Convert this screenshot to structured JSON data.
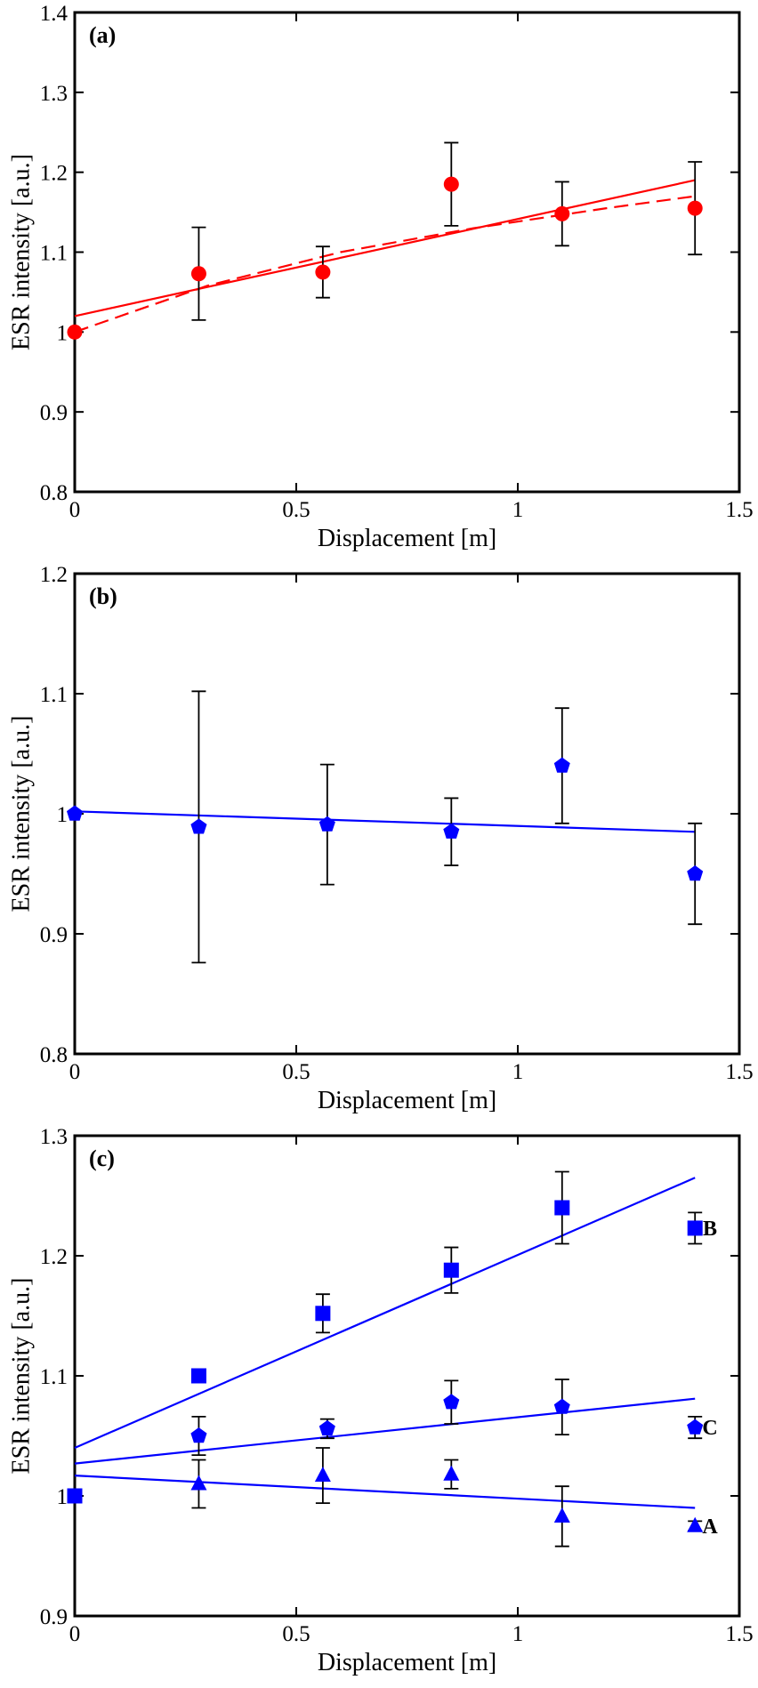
{
  "chart_data": [
    {
      "type": "scatter",
      "panel_label": "(a)",
      "xlabel": "Displacement [m]",
      "ylabel": "ESR intensity [a.u.]",
      "xlim": [
        0,
        1.5
      ],
      "ylim": [
        0.8,
        1.4
      ],
      "x_ticks": [
        "0",
        "0.5",
        "1",
        "1.5"
      ],
      "y_ticks": [
        "0.8",
        "0.9",
        "1",
        "1.1",
        "1.2",
        "1.3",
        "1.4"
      ],
      "color": "#ff0000",
      "series": [
        {
          "marker": "circle",
          "x": [
            0,
            0.28,
            0.56,
            0.85,
            1.1,
            1.4
          ],
          "y": [
            1.0,
            1.073,
            1.075,
            1.185,
            1.148,
            1.155
          ],
          "err": [
            0,
            0.058,
            0.032,
            0.052,
            0.04,
            0.058
          ]
        }
      ],
      "fits": [
        {
          "style": "solid",
          "x": [
            0,
            1.4
          ],
          "y": [
            1.02,
            1.19
          ]
        },
        {
          "style": "dashed",
          "x": [
            0,
            0.3,
            0.6,
            0.9,
            1.2,
            1.4
          ],
          "y": [
            1.0,
            1.058,
            1.1,
            1.13,
            1.155,
            1.17
          ]
        }
      ]
    },
    {
      "type": "scatter",
      "panel_label": "(b)",
      "xlabel": "Displacement [m]",
      "ylabel": "ESR intensity [a.u.]",
      "xlim": [
        0,
        1.5
      ],
      "ylim": [
        0.8,
        1.2
      ],
      "x_ticks": [
        "0",
        "0.5",
        "1",
        "1.5"
      ],
      "y_ticks": [
        "0.8",
        "0.9",
        "1",
        "1.1",
        "1.2"
      ],
      "color": "#0000ff",
      "series": [
        {
          "marker": "pentagon",
          "x": [
            0,
            0.28,
            0.57,
            0.85,
            1.1,
            1.4
          ],
          "y": [
            1.0,
            0.989,
            0.991,
            0.985,
            1.04,
            0.95
          ],
          "err": [
            0,
            0.113,
            0.05,
            0.028,
            0.048,
            0.042
          ]
        }
      ],
      "fits": [
        {
          "style": "solid",
          "x": [
            0,
            1.4
          ],
          "y": [
            1.002,
            0.985
          ]
        }
      ]
    },
    {
      "type": "scatter",
      "panel_label": "(c)",
      "xlabel": "Displacement [m]",
      "ylabel": "ESR intensity [a.u.]",
      "xlim": [
        0,
        1.5
      ],
      "ylim": [
        0.9,
        1.3
      ],
      "x_ticks": [
        "0",
        "0.5",
        "1",
        "1.5"
      ],
      "y_ticks": [
        "0.9",
        "1",
        "1.1",
        "1.2",
        "1.3"
      ],
      "color": "#0000ff",
      "series": [
        {
          "name": "B",
          "marker": "square",
          "x": [
            0,
            0.28,
            0.56,
            0.85,
            1.1,
            1.4
          ],
          "y": [
            1.0,
            1.1,
            1.152,
            1.188,
            1.24,
            1.223
          ],
          "err": [
            0,
            0,
            0.016,
            0.019,
            0.03,
            0.013
          ],
          "fit": {
            "x": [
              0,
              1.4
            ],
            "y": [
              1.04,
              1.265
            ]
          }
        },
        {
          "name": "C",
          "marker": "pentagon",
          "x": [
            0.28,
            0.57,
            0.85,
            1.1,
            1.4
          ],
          "y": [
            1.05,
            1.056,
            1.078,
            1.074,
            1.057
          ],
          "err": [
            0.016,
            0.008,
            0.018,
            0.023,
            0.009
          ],
          "fit": {
            "x": [
              0,
              1.4
            ],
            "y": [
              1.027,
              1.081
            ]
          }
        },
        {
          "name": "A",
          "marker": "triangle",
          "x": [
            0.28,
            0.56,
            0.85,
            1.1,
            1.4
          ],
          "y": [
            1.01,
            1.017,
            1.018,
            0.983,
            0.975
          ],
          "err": [
            0.02,
            0.023,
            0.012,
            0.025,
            0.004
          ],
          "fit": {
            "x": [
              0,
              1.4
            ],
            "y": [
              1.017,
              0.99
            ]
          }
        }
      ]
    }
  ]
}
